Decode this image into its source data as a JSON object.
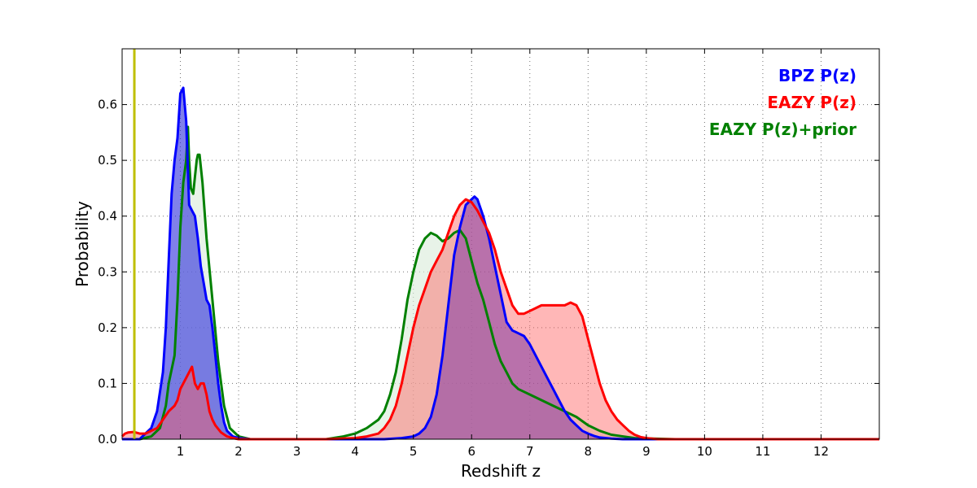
{
  "chart_data": {
    "type": "area",
    "xlabel": "Redshift z",
    "ylabel": "Probability",
    "xlim": [
      0,
      13
    ],
    "ylim": [
      0,
      0.7
    ],
    "xticks": [
      1,
      2,
      3,
      4,
      5,
      6,
      7,
      8,
      9,
      10,
      11,
      12
    ],
    "xtick_labels": [
      "1",
      "2",
      "3",
      "4",
      "5",
      "6",
      "7",
      "8",
      "9",
      "10",
      "11",
      "12"
    ],
    "yticks": [
      0.0,
      0.1,
      0.2,
      0.3,
      0.4,
      0.5,
      0.6
    ],
    "ytick_labels": [
      "0.0",
      "0.1",
      "0.2",
      "0.3",
      "0.4",
      "0.5",
      "0.6"
    ],
    "grid": true,
    "legend_position": "top-right",
    "vertical_line": {
      "x": 0.21,
      "color": "#bfbf00"
    },
    "series": [
      {
        "name": "EAZY P(z)+prior",
        "color": "#008000",
        "fill": "#d8ebd8",
        "fill_opacity": 0.6,
        "x": [
          0,
          0.3,
          0.5,
          0.65,
          0.7,
          0.75,
          0.8,
          0.9,
          0.95,
          1.0,
          1.05,
          1.1,
          1.13,
          1.15,
          1.18,
          1.22,
          1.25,
          1.28,
          1.3,
          1.33,
          1.38,
          1.45,
          1.55,
          1.65,
          1.75,
          1.85,
          2.0,
          2.2,
          3.0,
          3.5,
          3.8,
          4.0,
          4.2,
          4.4,
          4.5,
          4.6,
          4.7,
          4.8,
          4.9,
          5.0,
          5.1,
          5.2,
          5.3,
          5.4,
          5.5,
          5.6,
          5.7,
          5.8,
          5.9,
          6.0,
          6.1,
          6.2,
          6.3,
          6.4,
          6.5,
          6.6,
          6.7,
          6.8,
          6.9,
          7.0,
          7.2,
          7.4,
          7.6,
          7.8,
          8.0,
          8.2,
          8.4,
          8.8,
          9.5,
          13
        ],
        "y": [
          0,
          0,
          0.005,
          0.02,
          0.04,
          0.06,
          0.1,
          0.15,
          0.25,
          0.38,
          0.46,
          0.5,
          0.56,
          0.5,
          0.45,
          0.44,
          0.47,
          0.5,
          0.51,
          0.51,
          0.46,
          0.36,
          0.25,
          0.14,
          0.06,
          0.02,
          0.005,
          0,
          0,
          0,
          0.005,
          0.01,
          0.02,
          0.035,
          0.05,
          0.08,
          0.12,
          0.18,
          0.25,
          0.3,
          0.34,
          0.36,
          0.37,
          0.365,
          0.355,
          0.36,
          0.37,
          0.375,
          0.36,
          0.32,
          0.28,
          0.25,
          0.21,
          0.17,
          0.14,
          0.12,
          0.1,
          0.09,
          0.085,
          0.08,
          0.07,
          0.06,
          0.05,
          0.04,
          0.025,
          0.015,
          0.008,
          0.002,
          0,
          0
        ]
      },
      {
        "name": "BPZ P(z)",
        "color": "#0000ff",
        "fill": "#2b2bdc",
        "fill_opacity": 0.6,
        "x": [
          0,
          0.3,
          0.4,
          0.5,
          0.6,
          0.7,
          0.75,
          0.8,
          0.85,
          0.9,
          0.95,
          1.0,
          1.05,
          1.1,
          1.15,
          1.2,
          1.25,
          1.3,
          1.35,
          1.4,
          1.45,
          1.5,
          1.55,
          1.6,
          1.65,
          1.7,
          1.75,
          1.8,
          1.9,
          2.0,
          2.2,
          2.5,
          4.5,
          4.8,
          5.0,
          5.1,
          5.2,
          5.3,
          5.4,
          5.5,
          5.6,
          5.7,
          5.8,
          5.9,
          6.0,
          6.05,
          6.1,
          6.2,
          6.3,
          6.4,
          6.5,
          6.6,
          6.7,
          6.8,
          6.9,
          7.0,
          7.1,
          7.2,
          7.3,
          7.4,
          7.5,
          7.6,
          7.7,
          7.8,
          7.9,
          8.0,
          8.1,
          8.2,
          8.4,
          8.6,
          13
        ],
        "y": [
          0,
          0,
          0.01,
          0.02,
          0.05,
          0.12,
          0.2,
          0.32,
          0.44,
          0.5,
          0.54,
          0.62,
          0.63,
          0.57,
          0.42,
          0.41,
          0.4,
          0.36,
          0.31,
          0.28,
          0.25,
          0.24,
          0.2,
          0.15,
          0.1,
          0.06,
          0.03,
          0.015,
          0.005,
          0.002,
          0,
          0,
          0,
          0.002,
          0.005,
          0.01,
          0.02,
          0.04,
          0.08,
          0.15,
          0.24,
          0.33,
          0.38,
          0.42,
          0.43,
          0.435,
          0.43,
          0.4,
          0.36,
          0.31,
          0.26,
          0.21,
          0.195,
          0.19,
          0.185,
          0.17,
          0.15,
          0.13,
          0.11,
          0.09,
          0.07,
          0.05,
          0.035,
          0.025,
          0.015,
          0.01,
          0.006,
          0.003,
          0.001,
          0,
          0
        ]
      },
      {
        "name": "EAZY P(z)",
        "color": "#ff0000",
        "fill": "#ff6060",
        "fill_opacity": 0.45,
        "x": [
          0,
          0.05,
          0.1,
          0.2,
          0.3,
          0.4,
          0.5,
          0.6,
          0.7,
          0.8,
          0.9,
          0.95,
          1.0,
          1.05,
          1.1,
          1.15,
          1.2,
          1.25,
          1.3,
          1.35,
          1.4,
          1.45,
          1.5,
          1.55,
          1.6,
          1.7,
          1.8,
          1.9,
          2.0,
          2.2,
          3.5,
          4.0,
          4.2,
          4.4,
          4.5,
          4.6,
          4.7,
          4.8,
          4.9,
          5.0,
          5.1,
          5.2,
          5.3,
          5.4,
          5.5,
          5.6,
          5.7,
          5.8,
          5.9,
          6.0,
          6.1,
          6.2,
          6.3,
          6.4,
          6.5,
          6.6,
          6.7,
          6.8,
          6.9,
          7.0,
          7.1,
          7.2,
          7.4,
          7.6,
          7.7,
          7.8,
          7.9,
          8.0,
          8.1,
          8.2,
          8.3,
          8.4,
          8.5,
          8.6,
          8.7,
          8.8,
          8.9,
          9.0,
          9.2,
          13
        ],
        "y": [
          0.005,
          0.01,
          0.012,
          0.013,
          0.01,
          0.01,
          0.015,
          0.02,
          0.035,
          0.05,
          0.06,
          0.07,
          0.09,
          0.1,
          0.11,
          0.12,
          0.13,
          0.1,
          0.09,
          0.1,
          0.1,
          0.08,
          0.05,
          0.035,
          0.025,
          0.012,
          0.005,
          0.002,
          0,
          0,
          0,
          0.002,
          0.005,
          0.01,
          0.02,
          0.035,
          0.06,
          0.1,
          0.15,
          0.2,
          0.24,
          0.27,
          0.3,
          0.32,
          0.34,
          0.37,
          0.4,
          0.42,
          0.43,
          0.425,
          0.41,
          0.39,
          0.37,
          0.34,
          0.3,
          0.27,
          0.24,
          0.225,
          0.225,
          0.23,
          0.235,
          0.24,
          0.24,
          0.24,
          0.245,
          0.24,
          0.22,
          0.18,
          0.14,
          0.1,
          0.07,
          0.05,
          0.035,
          0.025,
          0.015,
          0.008,
          0.004,
          0.002,
          0,
          0
        ]
      }
    ],
    "legend": [
      {
        "label": "BPZ P(z)",
        "color": "#0000ff"
      },
      {
        "label": "EAZY P(z)",
        "color": "#ff0000"
      },
      {
        "label": "EAZY P(z)+prior",
        "color": "#008000"
      }
    ]
  }
}
